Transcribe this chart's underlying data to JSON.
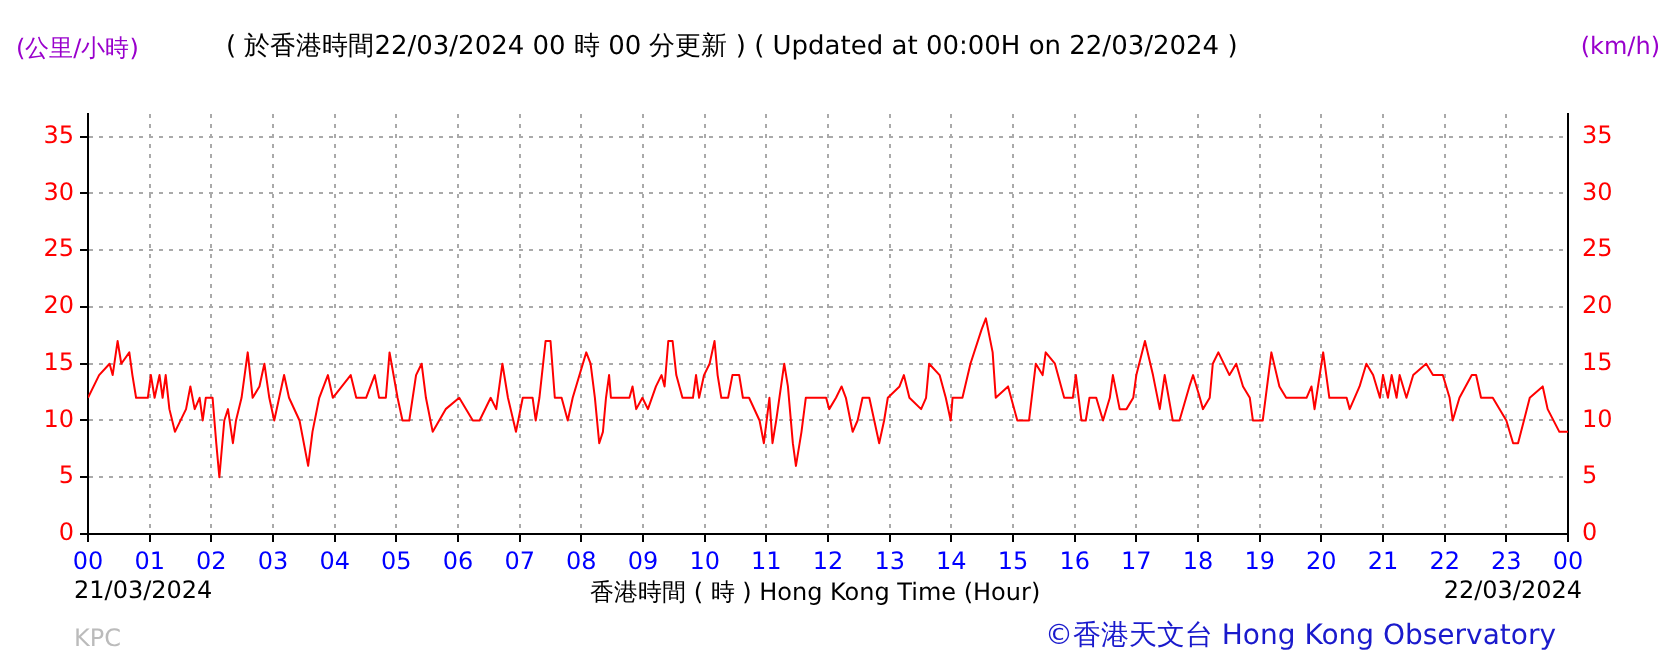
{
  "chart_data": {
    "type": "line",
    "title": "( 於香港時間22/03/2024 00 時 00 分更新 ) ( Updated at 00:00H on 22/03/2024 )",
    "xlabel": "香港時間 ( 時 ) Hong Kong Time (Hour)",
    "ylabel": "(公里/小時)",
    "y2label": "(km/h)",
    "annotations": [
      "21/03/2024",
      "22/03/2024",
      "KPC",
      "©香港天文台 Hong Kong Observatory"
    ],
    "x": [
      0,
      0.18,
      0.35,
      0.4,
      0.48,
      0.54,
      0.67,
      0.72,
      0.78,
      0.97,
      1.02,
      1.08,
      1.16,
      1.21,
      1.26,
      1.32,
      1.41,
      1.59,
      1.66,
      1.73,
      1.81,
      1.86,
      1.91,
      2.02,
      2.08,
      2.13,
      2.21,
      2.27,
      2.35,
      2.4,
      2.49,
      2.59,
      2.67,
      2.78,
      2.86,
      2.94,
      3.02,
      3.1,
      3.18,
      3.26,
      3.43,
      3.57,
      3.64,
      3.75,
      3.89,
      3.97,
      4.26,
      4.35,
      4.51,
      4.65,
      4.72,
      4.83,
      4.89,
      5.02,
      5.1,
      5.21,
      5.32,
      5.41,
      5.48,
      5.59,
      5.8,
      6.02,
      6.24,
      6.35,
      6.53,
      6.62,
      6.72,
      6.81,
      6.94,
      7.05,
      7.21,
      7.26,
      7.32,
      7.42,
      7.5,
      7.57,
      7.68,
      7.78,
      7.86,
      7.97,
      8.08,
      8.15,
      8.22,
      8.29,
      8.35,
      8.4,
      8.45,
      8.48,
      8.78,
      8.83,
      8.89,
      8.99,
      9.08,
      9.21,
      9.3,
      9.35,
      9.41,
      9.48,
      9.54,
      9.64,
      9.81,
      9.86,
      9.91,
      9.99,
      10.08,
      10.16,
      10.21,
      10.27,
      10.38,
      10.45,
      10.56,
      10.62,
      10.72,
      10.89,
      10.96,
      11.05,
      11.1,
      11.16,
      11.29,
      11.35,
      11.43,
      11.48,
      11.57,
      11.64,
      11.97,
      12.02,
      12.13,
      12.22,
      12.29,
      12.4,
      12.48,
      12.56,
      12.67,
      12.83,
      12.91,
      12.97,
      13.16,
      13.23,
      13.32,
      13.51,
      13.59,
      13.64,
      13.81,
      13.91,
      13.99,
      14.02,
      14.18,
      14.31,
      14.49,
      14.56,
      14.67,
      14.72,
      14.92,
      15.07,
      15.26,
      15.37,
      15.48,
      15.53,
      15.68,
      15.83,
      15.97,
      16.02,
      16.11,
      16.18,
      16.24,
      16.35,
      16.46,
      16.57,
      16.62,
      16.73,
      16.84,
      16.95,
      17,
      17.14,
      17.27,
      17.38,
      17.46,
      17.59,
      17.7,
      17.86,
      17.92,
      18.03,
      18.08,
      18.19,
      18.24,
      18.33,
      18.51,
      18.62,
      18.73,
      18.84,
      18.89,
      19.05,
      19.19,
      19.32,
      19.43,
      19.76,
      19.84,
      19.89,
      20.03,
      20.13,
      20.41,
      20.46,
      20.62,
      20.73,
      20.84,
      20.95,
      21,
      21.08,
      21.14,
      21.22,
      21.27,
      21.38,
      21.49,
      21.7,
      21.81,
      21.97,
      22.08,
      22.13,
      22.24,
      22.44,
      22.51,
      22.59,
      22.78,
      23,
      23.11,
      23.19,
      23.38,
      23.59,
      23.67,
      23.86,
      24
    ],
    "series": [
      {
        "color": "#ff0000",
        "values": [
          12,
          14,
          15,
          14,
          17,
          15,
          16,
          14,
          12,
          12,
          14,
          12,
          14,
          12,
          14,
          11,
          9,
          11,
          13,
          11,
          12,
          10,
          12,
          12,
          8,
          5,
          10,
          11,
          8,
          10,
          12,
          16,
          12,
          13,
          15,
          12,
          10,
          12,
          14,
          12,
          10,
          6,
          9,
          12,
          14,
          12,
          14,
          12,
          12,
          14,
          12,
          12,
          16,
          12,
          10,
          10,
          14,
          15,
          12,
          9,
          11,
          12,
          10,
          10,
          12,
          11,
          15,
          12,
          9,
          12,
          12,
          10,
          12,
          17,
          17,
          12,
          12,
          10,
          12,
          14,
          16,
          15,
          12,
          8,
          9,
          12,
          14,
          12,
          12,
          13,
          11,
          12,
          11,
          13,
          14,
          13,
          17,
          17,
          14,
          12,
          12,
          14,
          12,
          14,
          15,
          17,
          14,
          12,
          12,
          14,
          14,
          12,
          12,
          10,
          8,
          12,
          8,
          10,
          15,
          13,
          8,
          6,
          9,
          12,
          12,
          11,
          12,
          13,
          12,
          9,
          10,
          12,
          12,
          8,
          10,
          12,
          13,
          14,
          12,
          11,
          12,
          15,
          14,
          12,
          10,
          12,
          12,
          15,
          18,
          19,
          16,
          12,
          13,
          10,
          10,
          15,
          14,
          16,
          15,
          12,
          12,
          14,
          10,
          10,
          12,
          12,
          10,
          12,
          14,
          11,
          11,
          12,
          14,
          17,
          14,
          11,
          14,
          10,
          10,
          13,
          14,
          12,
          11,
          12,
          15,
          16,
          14,
          15,
          13,
          12,
          10,
          10,
          16,
          13,
          12,
          12,
          13,
          11,
          16,
          12,
          12,
          11,
          13,
          15,
          14,
          12,
          14,
          12,
          14,
          12,
          14,
          12,
          14,
          15,
          14,
          14,
          12,
          10,
          12,
          14,
          14,
          12,
          12,
          10,
          8,
          8,
          12,
          13,
          11,
          9,
          9
        ]
      }
    ],
    "xlim": [
      0,
      24
    ],
    "xticks": [
      {
        "value": 0,
        "label": "00"
      },
      {
        "value": 1,
        "label": "01"
      },
      {
        "value": 2,
        "label": "02"
      },
      {
        "value": 3,
        "label": "03"
      },
      {
        "value": 4,
        "label": "04"
      },
      {
        "value": 5,
        "label": "05"
      },
      {
        "value": 6,
        "label": "06"
      },
      {
        "value": 7,
        "label": "07"
      },
      {
        "value": 8,
        "label": "08"
      },
      {
        "value": 9,
        "label": "09"
      },
      10,
      11,
      12,
      13,
      14,
      15,
      16,
      17,
      18,
      19,
      20,
      21,
      22,
      23,
      {
        "value": 24,
        "label": "00"
      }
    ],
    "ylim": [
      0,
      37
    ],
    "yticks": [
      0,
      5,
      10,
      15,
      20,
      25,
      30,
      35
    ],
    "y2lim": [
      0,
      37
    ],
    "y2ticks": [
      0,
      5,
      10,
      15,
      20,
      25,
      30,
      35
    ],
    "grid": true,
    "marker": "none",
    "line_style": "solid"
  }
}
